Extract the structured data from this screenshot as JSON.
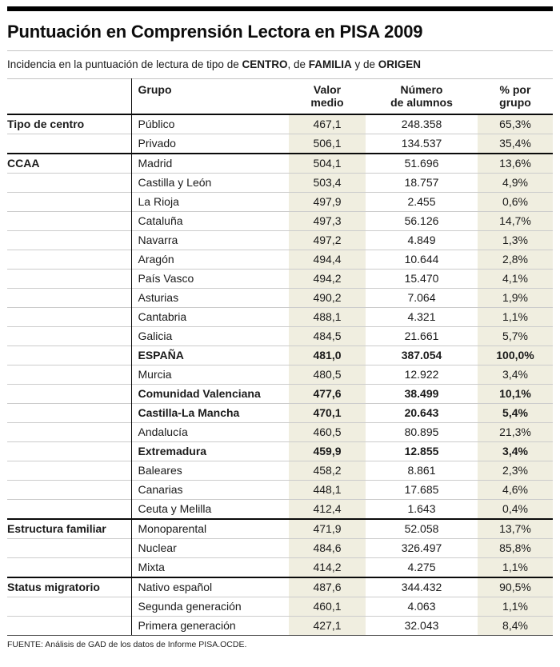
{
  "page": {
    "title": "Puntuación en Comprensión Lectora en PISA 2009",
    "subtitle": [
      {
        "text": "Incidencia en la puntuación de lectura de tipo de ",
        "bold": false
      },
      {
        "text": "CENTRO",
        "bold": true
      },
      {
        "text": ", de ",
        "bold": false
      },
      {
        "text": "FAMILIA",
        "bold": true
      },
      {
        "text": " y de ",
        "bold": false
      },
      {
        "text": "ORIGEN",
        "bold": true
      }
    ],
    "source": "FUENTE: Análisis de GAD de los datos de Informe PISA.OCDE."
  },
  "colors": {
    "tint_beige": "#f0eee0",
    "rule_dark": "#0a0a0a",
    "rule_light": "#cccccc",
    "top_bar": "#000000"
  },
  "chart_data": {
    "type": "table",
    "title": "Puntuación en Comprensión Lectora en PISA 2009",
    "columns": [
      {
        "id": "category",
        "header_lines": []
      },
      {
        "id": "group",
        "header_lines": [
          "Grupo"
        ]
      },
      {
        "id": "value",
        "header_lines": [
          "Valor",
          "medio"
        ],
        "tinted": true
      },
      {
        "id": "students",
        "header_lines": [
          "Número",
          "de alumnos"
        ],
        "tinted": false
      },
      {
        "id": "pct",
        "header_lines": [
          "% por",
          "grupo"
        ],
        "tinted": true
      }
    ],
    "groups": [
      {
        "label": "Tipo de centro",
        "rows": [
          {
            "group": "Público",
            "value": "467,1",
            "students": "248.358",
            "pct": "65,3%",
            "bold": false
          },
          {
            "group": "Privado",
            "value": "506,1",
            "students": "134.537",
            "pct": "35,4%",
            "bold": false
          }
        ]
      },
      {
        "label": "CCAA",
        "rows": [
          {
            "group": "Madrid",
            "value": "504,1",
            "students": "51.696",
            "pct": "13,6%",
            "bold": false
          },
          {
            "group": "Castilla y León",
            "value": "503,4",
            "students": "18.757",
            "pct": "4,9%",
            "bold": false
          },
          {
            "group": "La Rioja",
            "value": "497,9",
            "students": "2.455",
            "pct": "0,6%",
            "bold": false
          },
          {
            "group": "Cataluña",
            "value": "497,3",
            "students": "56.126",
            "pct": "14,7%",
            "bold": false
          },
          {
            "group": "Navarra",
            "value": "497,2",
            "students": "4.849",
            "pct": "1,3%",
            "bold": false
          },
          {
            "group": "Aragón",
            "value": "494,4",
            "students": "10.644",
            "pct": "2,8%",
            "bold": false
          },
          {
            "group": "País Vasco",
            "value": "494,2",
            "students": "15.470",
            "pct": "4,1%",
            "bold": false
          },
          {
            "group": "Asturias",
            "value": "490,2",
            "students": "7.064",
            "pct": "1,9%",
            "bold": false
          },
          {
            "group": "Cantabria",
            "value": "488,1",
            "students": "4.321",
            "pct": "1,1%",
            "bold": false
          },
          {
            "group": "Galicia",
            "value": "484,5",
            "students": "21.661",
            "pct": "5,7%",
            "bold": false
          },
          {
            "group": "ESPAÑA",
            "value": "481,0",
            "students": "387.054",
            "pct": "100,0%",
            "bold": true
          },
          {
            "group": "Murcia",
            "value": "480,5",
            "students": "12.922",
            "pct": "3,4%",
            "bold": false
          },
          {
            "group": "Comunidad Valenciana",
            "value": "477,6",
            "students": "38.499",
            "pct": "10,1%",
            "bold": true
          },
          {
            "group": "Castilla-La Mancha",
            "value": "470,1",
            "students": "20.643",
            "pct": "5,4%",
            "bold": true
          },
          {
            "group": "Andalucía",
            "value": "460,5",
            "students": "80.895",
            "pct": "21,3%",
            "bold": false
          },
          {
            "group": "Extremadura",
            "value": "459,9",
            "students": "12.855",
            "pct": "3,4%",
            "bold": true
          },
          {
            "group": "Baleares",
            "value": "458,2",
            "students": "8.861",
            "pct": "2,3%",
            "bold": false
          },
          {
            "group": "Canarias",
            "value": "448,1",
            "students": "17.685",
            "pct": "4,6%",
            "bold": false
          },
          {
            "group": "Ceuta y Melilla",
            "value": "412,4",
            "students": "1.643",
            "pct": "0,4%",
            "bold": false
          }
        ]
      },
      {
        "label": "Estructura familiar",
        "rows": [
          {
            "group": "Monoparental",
            "value": "471,9",
            "students": "52.058",
            "pct": "13,7%",
            "bold": false
          },
          {
            "group": "Nuclear",
            "value": "484,6",
            "students": "326.497",
            "pct": "85,8%",
            "bold": false
          },
          {
            "group": "Mixta",
            "value": "414,2",
            "students": "4.275",
            "pct": "1,1%",
            "bold": false
          }
        ]
      },
      {
        "label": "Status migratorio",
        "rows": [
          {
            "group": "Nativo español",
            "value": "487,6",
            "students": "344.432",
            "pct": "90,5%",
            "bold": false
          },
          {
            "group": "Segunda generación",
            "value": "460,1",
            "students": "4.063",
            "pct": "1,1%",
            "bold": false
          },
          {
            "group": "Primera generación",
            "value": "427,1",
            "students": "32.043",
            "pct": "8,4%",
            "bold": false
          }
        ]
      }
    ]
  }
}
